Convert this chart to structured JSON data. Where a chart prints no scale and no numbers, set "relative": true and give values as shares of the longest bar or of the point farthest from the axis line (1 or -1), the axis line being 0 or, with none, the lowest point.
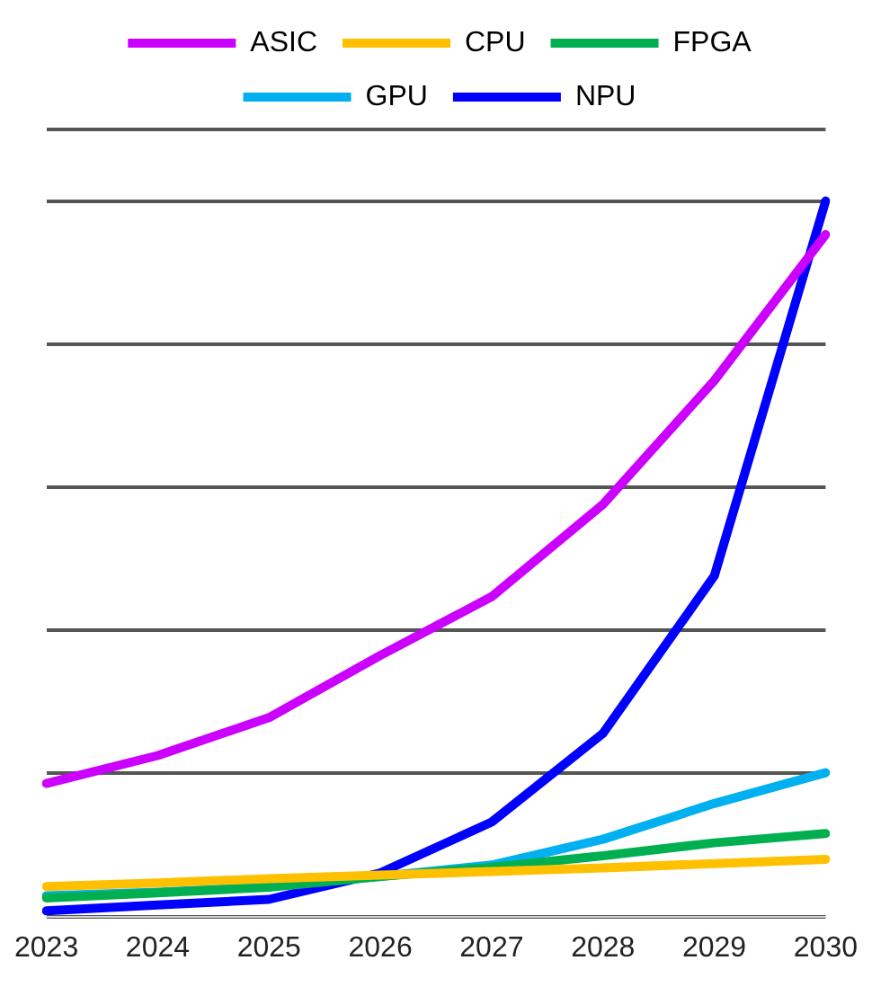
{
  "chart_data": {
    "type": "line",
    "relative": true,
    "grid": "y",
    "legend": "top",
    "marker": "none",
    "line_style": "solid",
    "categories": [
      "2023",
      "2024",
      "2025",
      "2026",
      "2027",
      "2028",
      "2029",
      "2030"
    ],
    "series": [
      {
        "name": "ASIC",
        "color": "#cc00ff",
        "values": [
          0.186,
          0.225,
          0.278,
          0.365,
          0.447,
          0.576,
          0.749,
          0.953
        ]
      },
      {
        "name": "CPU",
        "color": "#ffc000",
        "values": [
          0.042,
          0.047,
          0.053,
          0.058,
          0.063,
          0.068,
          0.074,
          0.08
        ]
      },
      {
        "name": "FPGA",
        "color": "#00b050",
        "values": [
          0.026,
          0.033,
          0.041,
          0.056,
          0.069,
          0.085,
          0.103,
          0.116
        ]
      },
      {
        "name": "GPU",
        "color": "#00b0f0",
        "values": [
          0.029,
          0.034,
          0.042,
          0.056,
          0.072,
          0.108,
          0.158,
          0.201
        ]
      },
      {
        "name": "NPU",
        "color": "#0000ff",
        "values": [
          0.008,
          0.016,
          0.024,
          0.061,
          0.132,
          0.256,
          0.476,
          1
        ]
      }
    ]
  }
}
